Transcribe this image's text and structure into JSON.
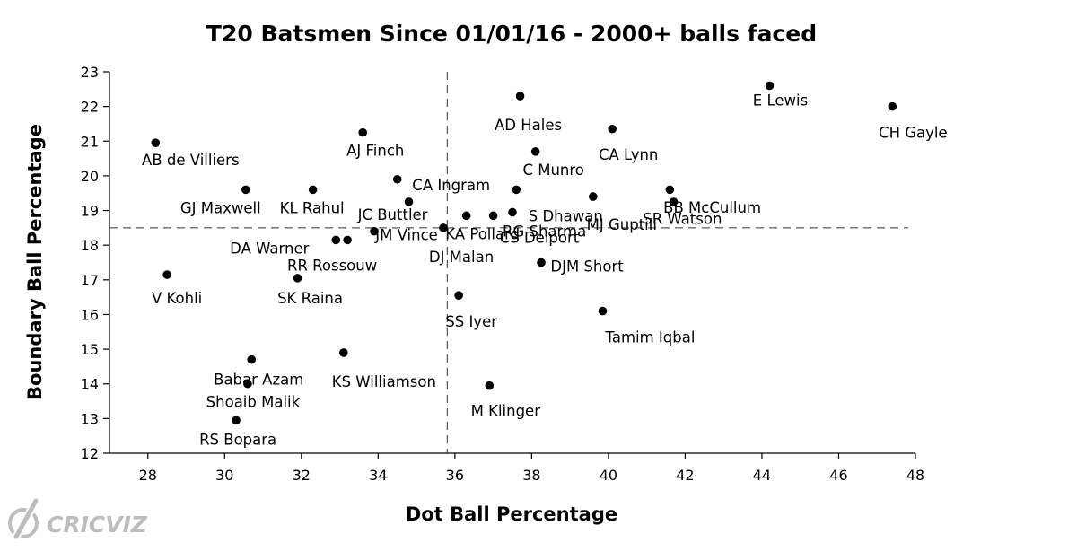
{
  "chart_data": {
    "type": "scatter",
    "title": "T20 Batsmen Since 01/01/16 - 2000+ balls faced",
    "xlabel": "Dot Ball Percentage",
    "ylabel": "Boundary Ball Percentage",
    "xlim": [
      27,
      48
    ],
    "ylim": [
      12,
      23
    ],
    "xticks": [
      28,
      30,
      32,
      34,
      36,
      38,
      40,
      42,
      44,
      46,
      48
    ],
    "yticks": [
      12,
      13,
      14,
      15,
      16,
      17,
      18,
      19,
      20,
      21,
      22,
      23
    ],
    "reference_lines": {
      "x": 35.8,
      "y": 18.5
    },
    "grid": false,
    "point_color": "#000000",
    "points": [
      {
        "name": "AB de Villiers",
        "x": 28.2,
        "y": 20.95
      },
      {
        "name": "V Kohli",
        "x": 28.5,
        "y": 17.15
      },
      {
        "name": "GJ Maxwell",
        "x": 30.55,
        "y": 19.6
      },
      {
        "name": "Babar Azam",
        "x": 30.7,
        "y": 14.7
      },
      {
        "name": "Shoaib Malik",
        "x": 30.6,
        "y": 14.0
      },
      {
        "name": "RS Bopara",
        "x": 30.3,
        "y": 12.95
      },
      {
        "name": "KL Rahul",
        "x": 32.3,
        "y": 19.6
      },
      {
        "name": "SK Raina",
        "x": 31.9,
        "y": 17.05
      },
      {
        "name": "DA Warner",
        "x": 32.9,
        "y": 18.15
      },
      {
        "name": "RR Rossouw",
        "x": 33.2,
        "y": 18.15
      },
      {
        "name": "KS Williamson",
        "x": 33.1,
        "y": 14.9
      },
      {
        "name": "AJ Finch",
        "x": 33.6,
        "y": 21.25
      },
      {
        "name": "JM Vince",
        "x": 33.9,
        "y": 18.4
      },
      {
        "name": "CA Ingram",
        "x": 34.5,
        "y": 19.9
      },
      {
        "name": "JC Buttler",
        "x": 34.8,
        "y": 19.25
      },
      {
        "name": "DJ Malan",
        "x": 35.7,
        "y": 18.5
      },
      {
        "name": "KA Pollard",
        "x": 36.3,
        "y": 18.85
      },
      {
        "name": "SS Iyer",
        "x": 36.1,
        "y": 16.55
      },
      {
        "name": "M Klinger",
        "x": 36.9,
        "y": 13.95
      },
      {
        "name": "RG Sharma",
        "x": 37.0,
        "y": 18.85
      },
      {
        "name": "CS Delport",
        "x": 37.5,
        "y": 18.95
      },
      {
        "name": "AD Hales",
        "x": 37.7,
        "y": 22.3
      },
      {
        "name": "C Munro",
        "x": 38.1,
        "y": 20.7
      },
      {
        "name": "S Dhawan",
        "x": 37.6,
        "y": 19.6
      },
      {
        "name": "DJM Short",
        "x": 38.25,
        "y": 17.5
      },
      {
        "name": "MJ Guptill",
        "x": 39.6,
        "y": 19.4
      },
      {
        "name": "Tamim Iqbal",
        "x": 39.85,
        "y": 16.1
      },
      {
        "name": "CA Lynn",
        "x": 40.1,
        "y": 21.35
      },
      {
        "name": "SR Watson",
        "x": 41.6,
        "y": 19.6
      },
      {
        "name": "BB McCullum",
        "x": 41.7,
        "y": 19.25
      },
      {
        "name": "E Lewis",
        "x": 44.2,
        "y": 22.6
      },
      {
        "name": "CH Gayle",
        "x": 47.4,
        "y": 22.0
      }
    ]
  },
  "brand": {
    "logo_text": "CRICVIZ",
    "logo_color": "#bdbdbd"
  }
}
